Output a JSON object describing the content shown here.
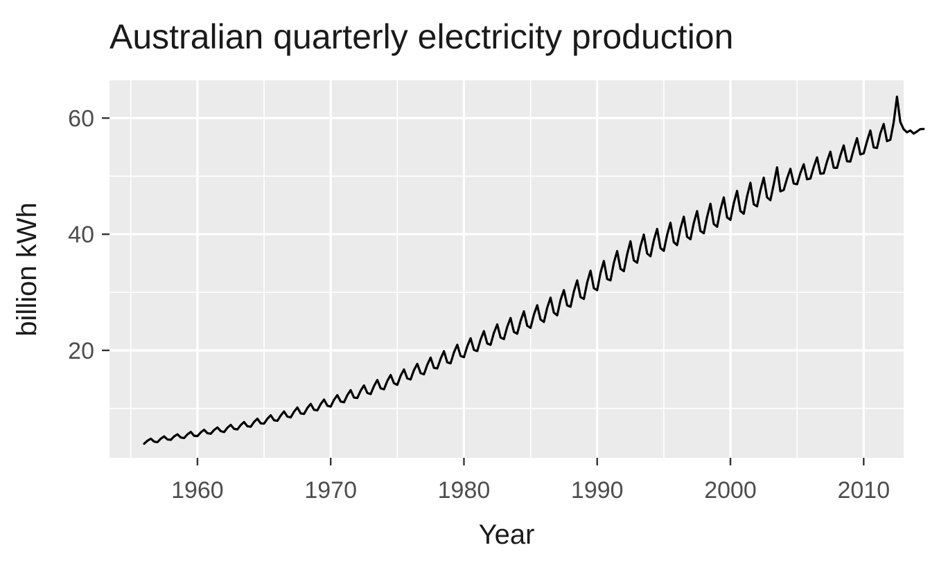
{
  "chart_data": {
    "type": "line",
    "title": "Australian quarterly electricity production",
    "xlabel": "Year",
    "ylabel": "billion kWh",
    "xlim": [
      1953.4,
      2013.0
    ],
    "ylim": [
      1.5,
      66.5
    ],
    "x_ticks": [
      1960,
      1970,
      1980,
      1990,
      2000,
      2010
    ],
    "x_tick_labels": [
      "1960",
      "1970",
      "1980",
      "1990",
      "2000",
      "2010"
    ],
    "y_ticks": [
      20,
      40,
      60
    ],
    "y_tick_labels": [
      "20",
      "40",
      "60"
    ],
    "grid": true,
    "panel_color": "#ebebeb",
    "line_color": "#000000",
    "series": [
      {
        "name": "electricity production",
        "start": 1956.0,
        "frequency": 4,
        "values": [
          3.92,
          4.44,
          4.8,
          4.28,
          4.19,
          4.79,
          5.19,
          4.66,
          4.59,
          5.18,
          5.55,
          5.0,
          4.91,
          5.53,
          5.96,
          5.29,
          5.24,
          5.88,
          6.33,
          5.74,
          5.64,
          6.29,
          6.72,
          6.09,
          5.93,
          6.68,
          7.17,
          6.48,
          6.39,
          7.14,
          7.66,
          6.93,
          6.85,
          7.68,
          8.23,
          7.43,
          7.39,
          8.22,
          8.82,
          7.97,
          7.87,
          8.77,
          9.48,
          8.6,
          8.46,
          9.44,
          10.17,
          9.14,
          9.06,
          10.08,
          10.79,
          9.77,
          9.67,
          10.75,
          11.53,
          10.47,
          10.32,
          11.5,
          12.29,
          11.19,
          11.07,
          12.29,
          13.15,
          11.87,
          11.8,
          13.07,
          13.96,
          12.67,
          12.47,
          13.86,
          14.9,
          13.47,
          13.29,
          14.73,
          15.77,
          14.34,
          14.06,
          15.64,
          16.72,
          15.17,
          15.0,
          16.6,
          17.67,
          16.07,
          15.89,
          17.52,
          18.76,
          16.99,
          16.89,
          18.56,
          19.86,
          17.94,
          17.77,
          19.65,
          20.96,
          19.04,
          18.82,
          20.71,
          22.09,
          20.08,
          19.89,
          21.86,
          23.31,
          21.18,
          20.96,
          23.03,
          24.47,
          22.22,
          21.94,
          24.07,
          25.58,
          23.18,
          22.87,
          25.07,
          26.72,
          24.24,
          23.88,
          26.15,
          27.77,
          25.31,
          24.89,
          27.35,
          29.08,
          26.49,
          26.04,
          28.67,
          30.38,
          27.74,
          27.51,
          30.13,
          32.05,
          29.17,
          28.86,
          31.69,
          33.72,
          30.71,
          30.37,
          33.36,
          35.39,
          32.28,
          32.06,
          35.07,
          37.1,
          34.05,
          33.63,
          36.56,
          38.78,
          35.5,
          35.1,
          37.93,
          39.94,
          36.69,
          36.21,
          38.95,
          40.92,
          37.62,
          37.14,
          39.89,
          41.98,
          38.62,
          38.13,
          40.98,
          43.02,
          39.56,
          39.14,
          41.94,
          43.98,
          40.55,
          40.16,
          42.99,
          45.25,
          41.76,
          41.29,
          44.2,
          46.34,
          42.89,
          42.48,
          45.33,
          47.46,
          43.99,
          43.53,
          46.54,
          48.85,
          45.16,
          44.8,
          47.58,
          49.74,
          46.34,
          45.87,
          48.62,
          51.52,
          47.39,
          47.62,
          49.6,
          51.26,
          48.73,
          48.61,
          50.54,
          52.05,
          49.46,
          49.59,
          51.56,
          53.23,
          50.43,
          50.48,
          52.53,
          54.21,
          51.46,
          51.43,
          53.56,
          55.29,
          52.56,
          52.52,
          54.64,
          56.54,
          53.74,
          53.92,
          56.0,
          57.87,
          54.96,
          54.85,
          57.36,
          58.98,
          56.03,
          56.27,
          59.25,
          63.69,
          59.31,
          58.08,
          57.55,
          57.87,
          57.33,
          57.69,
          58.1,
          58.12
        ]
      }
    ]
  }
}
